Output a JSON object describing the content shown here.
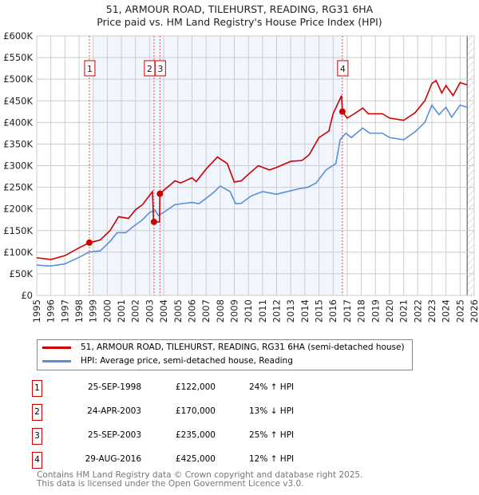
{
  "chart_data": {
    "type": "line",
    "title": "51, ARMOUR ROAD, TILEHURST, READING, RG31 6HA",
    "subtitle": "Price paid vs. HM Land Registry's House Price Index (HPI)",
    "xlim": [
      1995,
      2026
    ],
    "ylim": [
      0,
      600000
    ],
    "yticks": [
      "£0",
      "£50K",
      "£100K",
      "£150K",
      "£200K",
      "£250K",
      "£300K",
      "£350K",
      "£400K",
      "£450K",
      "£500K",
      "£550K",
      "£600K"
    ],
    "xticks": [
      "1995",
      "1996",
      "1997",
      "1998",
      "1999",
      "2000",
      "2001",
      "2002",
      "2003",
      "2004",
      "2005",
      "2006",
      "2007",
      "2008",
      "2009",
      "2010",
      "2011",
      "2012",
      "2013",
      "2014",
      "2015",
      "2016",
      "2017",
      "2018",
      "2019",
      "2020",
      "2021",
      "2022",
      "2023",
      "2024",
      "2025",
      "2026"
    ],
    "grid": true,
    "series": [
      {
        "name": "51, ARMOUR ROAD, TILEHURST, READING, RG31 6HA (semi-detached house)",
        "color": "#cc0000",
        "x": [
          1995,
          1996,
          1997,
          1998,
          1998.73,
          1999.5,
          2000.2,
          2000.8,
          2001.5,
          2002,
          2002.5,
          2003.2,
          2003.28,
          2003.7,
          2003.73,
          2004,
          2004.8,
          2005.2,
          2006,
          2006.3,
          2007,
          2007.8,
          2008.5,
          2009,
          2009.5,
          2010,
          2010.7,
          2011.5,
          2012,
          2013,
          2013.8,
          2014.3,
          2015,
          2015.7,
          2016,
          2016.6,
          2016.66,
          2017,
          2017.5,
          2018.1,
          2018.5,
          2019.5,
          2020,
          2021,
          2021.8,
          2022.5,
          2023,
          2023.3,
          2023.7,
          2024,
          2024.5,
          2025,
          2025.5
        ],
        "y": [
          87000,
          83000,
          92000,
          110000,
          122000,
          128000,
          150000,
          182000,
          178000,
          198000,
          210000,
          240000,
          170000,
          170000,
          235000,
          243000,
          265000,
          260000,
          272000,
          263000,
          292000,
          320000,
          305000,
          262000,
          265000,
          280000,
          300000,
          290000,
          296000,
          310000,
          312000,
          325000,
          365000,
          380000,
          420000,
          462000,
          425000,
          410000,
          420000,
          433000,
          420000,
          420000,
          410000,
          405000,
          422000,
          450000,
          490000,
          497000,
          468000,
          485000,
          462000,
          492000,
          487000
        ]
      },
      {
        "name": "HPI: Average price, semi-detached house, Reading",
        "color": "#5b8fd6",
        "x": [
          1995,
          1996,
          1997,
          1998,
          1998.7,
          1999.5,
          2000.2,
          2000.7,
          2001.3,
          2001.8,
          2002.5,
          2003,
          2003.4,
          2003.6,
          2004,
          2004.8,
          2005.5,
          2006,
          2006.5,
          2007.5,
          2008,
          2008.7,
          2009.1,
          2009.5,
          2010.2,
          2011,
          2012,
          2012.5,
          2013.5,
          2014.2,
          2014.8,
          2015.5,
          2016.2,
          2016.5,
          2016.9,
          2017.3,
          2018.1,
          2018.6,
          2019.5,
          2020,
          2021,
          2021.8,
          2022.5,
          2023,
          2023.5,
          2024,
          2024.4,
          2025,
          2025.5
        ],
        "y": [
          70000,
          68000,
          73000,
          88000,
          100000,
          103000,
          125000,
          145000,
          145000,
          158000,
          175000,
          192000,
          197000,
          185000,
          192000,
          210000,
          213000,
          215000,
          212000,
          237000,
          253000,
          240000,
          212000,
          213000,
          230000,
          240000,
          234000,
          238000,
          246000,
          250000,
          260000,
          290000,
          305000,
          360000,
          375000,
          365000,
          387000,
          375000,
          375000,
          365000,
          360000,
          378000,
          400000,
          440000,
          418000,
          435000,
          412000,
          440000,
          435000
        ]
      }
    ],
    "sales": [
      {
        "label": "1",
        "x": 1998.73,
        "y": 122000,
        "date": "25-SEP-1998",
        "price": "£122,000",
        "hpi": "24% ↑ HPI"
      },
      {
        "label": "2",
        "x": 2003.31,
        "y": 170000,
        "date": "24-APR-2003",
        "price": "£170,000",
        "hpi": "13% ↓ HPI"
      },
      {
        "label": "3",
        "x": 2003.73,
        "y": 235000,
        "date": "25-SEP-2003",
        "price": "£235,000",
        "hpi": "25% ↑ HPI"
      },
      {
        "label": "4",
        "x": 2016.66,
        "y": 425000,
        "date": "29-AUG-2016",
        "price": "£425,000",
        "hpi": "12% ↑ HPI"
      }
    ],
    "shaded_range": [
      1999,
      2016.66
    ],
    "hatched_from": 2025.5
  },
  "footer": {
    "line1": "Contains HM Land Registry data © Crown copyright and database right 2025.",
    "line2": "This data is licensed under the Open Government Licence v3.0."
  }
}
